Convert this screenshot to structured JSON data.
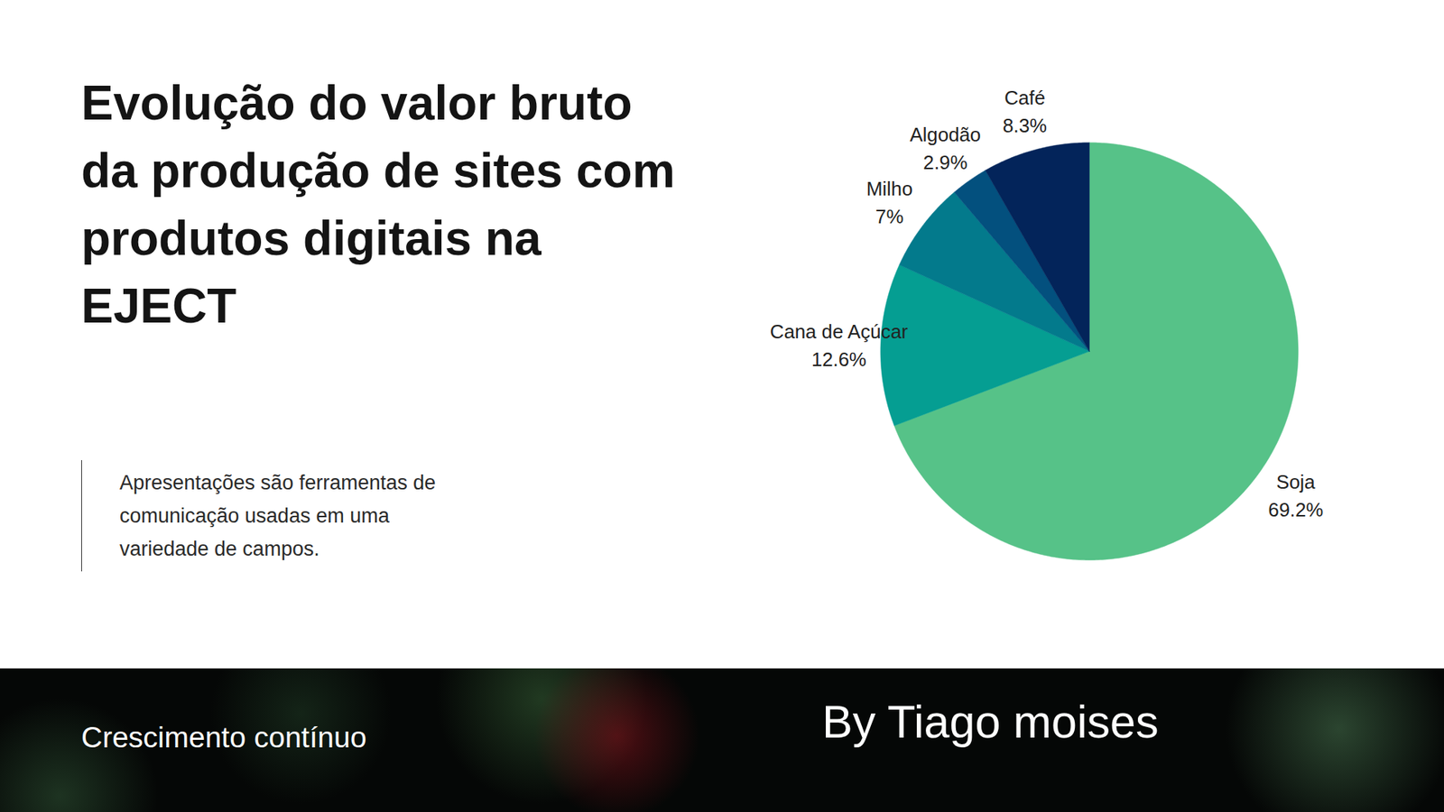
{
  "chart_data": {
    "type": "pie",
    "title": "Evolução do valor bruto da produção de sites com produtos digitais na EJECT",
    "subtitle": "Apresentações são ferramentas de comunicação usadas em uma variedade de campos.",
    "categories": [
      "Soja",
      "Cana de Açúcar",
      "Milho",
      "Algodão",
      "Café"
    ],
    "values": [
      69.2,
      12.6,
      7,
      2.9,
      8.3
    ],
    "value_labels": [
      "69.2%",
      "12.6%",
      "7%",
      "2.9%",
      "8.3%"
    ],
    "colors": [
      "#56c288",
      "#059e92",
      "#037a8c",
      "#03507e",
      "#03245a"
    ],
    "data_labels": true
  },
  "footer": {
    "left": "Crescimento contínuo",
    "right": "By Tiago moises"
  }
}
